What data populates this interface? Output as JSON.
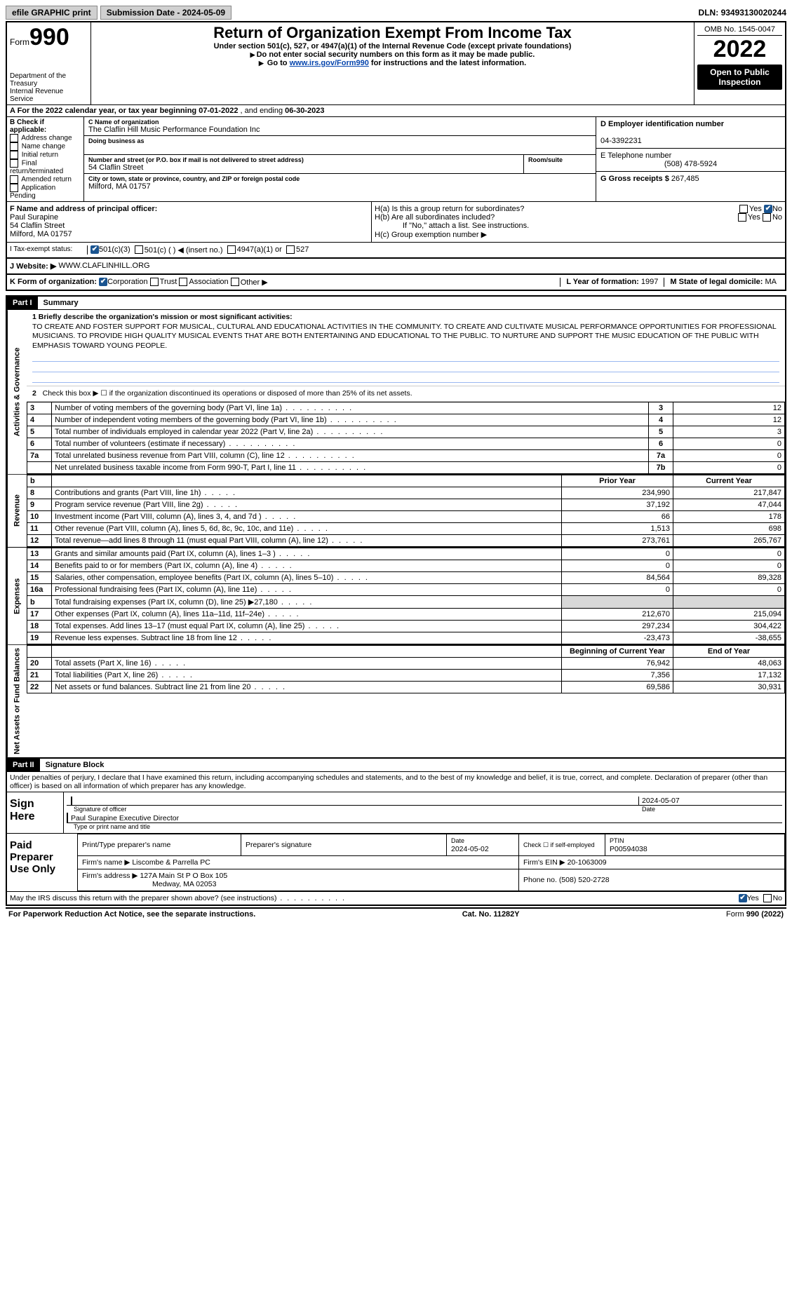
{
  "top": {
    "efile": "efile GRAPHIC print",
    "sub_btn": "Submission Date - 2024-05-09",
    "dln_label": "DLN:",
    "dln": "93493130020244"
  },
  "header": {
    "form_word": "Form",
    "form_num": "990",
    "dept": "Department of the Treasury",
    "irs": "Internal Revenue Service",
    "title": "Return of Organization Exempt From Income Tax",
    "sub1": "Under section 501(c), 527, or 4947(a)(1) of the Internal Revenue Code (except private foundations)",
    "sub2": "Do not enter social security numbers on this form as it may be made public.",
    "sub3_pre": "Go to ",
    "sub3_link": "www.irs.gov/Form990",
    "sub3_post": " for instructions and the latest information.",
    "omb_label": "OMB No. 1545-0047",
    "year": "2022",
    "open": "Open to Public Inspection"
  },
  "rowA": {
    "prefix": "A For the 2022 calendar year, or tax year beginning ",
    "begin": "07-01-2022",
    "mid": " , and ending ",
    "end": "06-30-2023"
  },
  "colB": {
    "title": "B Check if applicable:",
    "items": [
      "Address change",
      "Name change",
      "Initial return",
      "Final return/terminated",
      "Amended return",
      "Application Pending"
    ]
  },
  "colC": {
    "name_label": "C Name of organization",
    "name": "The Claflin Hill Music Performance Foundation Inc",
    "dba_label": "Doing business as",
    "dba": "",
    "addr_label": "Number and street (or P.O. box if mail is not delivered to street address)",
    "addr": "54 Claflin Street",
    "room_label": "Room/suite",
    "city_label": "City or town, state or province, country, and ZIP or foreign postal code",
    "city": "Milford, MA  01757"
  },
  "colD": {
    "ein_label": "D Employer identification number",
    "ein": "04-3392231",
    "phone_label": "E Telephone number",
    "phone": "(508) 478-5924",
    "gross_label": "G Gross receipts $",
    "gross": "267,485"
  },
  "rowF": {
    "label": "F Name and address of principal officer:",
    "name": "Paul Surapine",
    "street": "54 Claflin Street",
    "city": "Milford, MA  01757"
  },
  "rowH": {
    "ha": "H(a)  Is this a group return for subordinates?",
    "hb": "H(b)  Are all subordinates included?",
    "hb_note": "If \"No,\" attach a list. See instructions.",
    "hc": "H(c)  Group exemption number ▶",
    "yes": "Yes",
    "no": "No"
  },
  "rowI": {
    "label": "I     Tax-exempt status:",
    "o1": "501(c)(3)",
    "o2": "501(c) (  ) ◀ (insert no.)",
    "o3": "4947(a)(1) or",
    "o4": "527"
  },
  "rowJ": {
    "label": "J    Website: ▶",
    "val": "WWW.CLAFLINHILL.ORG"
  },
  "rowK": {
    "label": "K Form of organization:",
    "o1": "Corporation",
    "o2": "Trust",
    "o3": "Association",
    "o4": "Other ▶"
  },
  "rowL": {
    "label": "L Year of formation:",
    "val": "1997",
    "m_label": "M State of legal domicile:",
    "m_val": "MA"
  },
  "part1": {
    "hdr": "Part I",
    "title": "Summary",
    "line1_label": "1  Briefly describe the organization's mission or most significant activities:",
    "mission": "TO CREATE AND FOSTER SUPPORT FOR MUSICAL, CULTURAL AND EDUCATIONAL ACTIVITIES IN THE COMMUNITY. TO CREATE AND CULTIVATE MUSICAL PERFORMANCE OPPORTUNITIES FOR PROFESSIONAL MUSICIANS. TO PROVIDE HIGH QUALITY MUSICAL EVENTS THAT ARE BOTH ENTERTAINING AND EDUCATIONAL TO THE PUBLIC. TO NURTURE AND SUPPORT THE MUSIC EDUCATION OF THE PUBLIC WITH EMPHASIS TOWARD YOUNG PEOPLE.",
    "line2": "Check this box ▶ ☐  if the organization discontinued its operations or disposed of more than 25% of its net assets."
  },
  "gov_lines": [
    {
      "n": "3",
      "d": "Number of voting members of the governing body (Part VI, line 1a)",
      "b": "3",
      "v": "12"
    },
    {
      "n": "4",
      "d": "Number of independent voting members of the governing body (Part VI, line 1b)",
      "b": "4",
      "v": "12"
    },
    {
      "n": "5",
      "d": "Total number of individuals employed in calendar year 2022 (Part V, line 2a)",
      "b": "5",
      "v": "3"
    },
    {
      "n": "6",
      "d": "Total number of volunteers (estimate if necessary)",
      "b": "6",
      "v": "0"
    },
    {
      "n": "7a",
      "d": "Total unrelated business revenue from Part VIII, column (C), line 12",
      "b": "7a",
      "v": "0"
    },
    {
      "n": "",
      "d": "Net unrelated business taxable income from Form 990-T, Part I, line 11",
      "b": "7b",
      "v": "0"
    }
  ],
  "rev_hdr": {
    "b": "b",
    "py": "Prior Year",
    "cy": "Current Year"
  },
  "rev_lines": [
    {
      "n": "8",
      "d": "Contributions and grants (Part VIII, line 1h)",
      "py": "234,990",
      "cy": "217,847"
    },
    {
      "n": "9",
      "d": "Program service revenue (Part VIII, line 2g)",
      "py": "37,192",
      "cy": "47,044"
    },
    {
      "n": "10",
      "d": "Investment income (Part VIII, column (A), lines 3, 4, and 7d )",
      "py": "66",
      "cy": "178"
    },
    {
      "n": "11",
      "d": "Other revenue (Part VIII, column (A), lines 5, 6d, 8c, 9c, 10c, and 11e)",
      "py": "1,513",
      "cy": "698"
    },
    {
      "n": "12",
      "d": "Total revenue—add lines 8 through 11 (must equal Part VIII, column (A), line 12)",
      "py": "273,761",
      "cy": "265,767"
    }
  ],
  "exp_lines": [
    {
      "n": "13",
      "d": "Grants and similar amounts paid (Part IX, column (A), lines 1–3 )",
      "py": "0",
      "cy": "0"
    },
    {
      "n": "14",
      "d": "Benefits paid to or for members (Part IX, column (A), line 4)",
      "py": "0",
      "cy": "0"
    },
    {
      "n": "15",
      "d": "Salaries, other compensation, employee benefits (Part IX, column (A), lines 5–10)",
      "py": "84,564",
      "cy": "89,328"
    },
    {
      "n": "16a",
      "d": "Professional fundraising fees (Part IX, column (A), line 11e)",
      "py": "0",
      "cy": "0"
    },
    {
      "n": "b",
      "d": "Total fundraising expenses (Part IX, column (D), line 25) ▶27,180",
      "py": "",
      "cy": "",
      "shade": true
    },
    {
      "n": "17",
      "d": "Other expenses (Part IX, column (A), lines 11a–11d, 11f–24e)",
      "py": "212,670",
      "cy": "215,094"
    },
    {
      "n": "18",
      "d": "Total expenses. Add lines 13–17 (must equal Part IX, column (A), line 25)",
      "py": "297,234",
      "cy": "304,422"
    },
    {
      "n": "19",
      "d": "Revenue less expenses. Subtract line 18 from line 12",
      "py": "-23,473",
      "cy": "-38,655"
    }
  ],
  "na_hdr": {
    "py": "Beginning of Current Year",
    "cy": "End of Year"
  },
  "na_lines": [
    {
      "n": "20",
      "d": "Total assets (Part X, line 16)",
      "py": "76,942",
      "cy": "48,063"
    },
    {
      "n": "21",
      "d": "Total liabilities (Part X, line 26)",
      "py": "7,356",
      "cy": "17,132"
    },
    {
      "n": "22",
      "d": "Net assets or fund balances. Subtract line 21 from line 20",
      "py": "69,586",
      "cy": "30,931"
    }
  ],
  "part2": {
    "hdr": "Part II",
    "title": "Signature Block",
    "decl": "Under penalties of perjury, I declare that I have examined this return, including accompanying schedules and statements, and to the best of my knowledge and belief, it is true, correct, and complete. Declaration of preparer (other than officer) is based on all information of which preparer has any knowledge."
  },
  "sign": {
    "here": "Sign Here",
    "sig_label": "Signature of officer",
    "date": "2024-05-07",
    "date_label": "Date",
    "name": "Paul Surapine  Executive Director",
    "name_label": "Type or print name and title"
  },
  "prep": {
    "here": "Paid Preparer Use Only",
    "c1": "Print/Type preparer's name",
    "c2": "Preparer's signature",
    "c3_label": "Date",
    "c3": "2024-05-02",
    "c4": "Check ☐ if self-employed",
    "c5_label": "PTIN",
    "c5": "P00594038",
    "firm_label": "Firm's name     ▶",
    "firm": "Liscombe & Parrella PC",
    "ein_label": "Firm's EIN ▶",
    "ein": "20-1063009",
    "addr_label": "Firm's address ▶",
    "addr1": "127A Main St P O Box 105",
    "addr2": "Medway, MA  02053",
    "phone_label": "Phone no.",
    "phone": "(508) 520-2728"
  },
  "discuss": {
    "q": "May the IRS discuss this return with the preparer shown above? (see instructions)",
    "yes": "Yes",
    "no": "No"
  },
  "footer": {
    "left": "For Paperwork Reduction Act Notice, see the separate instructions.",
    "mid": "Cat. No. 11282Y",
    "right": "Form 990 (2022)"
  },
  "vert": {
    "gov": "Activities & Governance",
    "rev": "Revenue",
    "exp": "Expenses",
    "na": "Net Assets or Fund Balances"
  }
}
